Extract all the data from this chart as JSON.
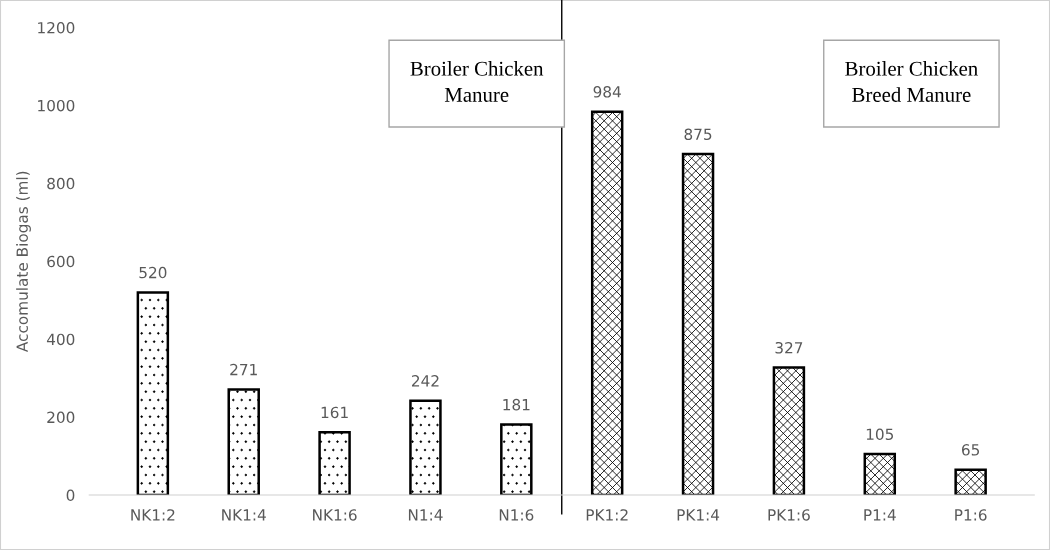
{
  "chart_data": {
    "type": "bar",
    "ylabel": "Accomulate Biogas (ml)",
    "categories": [
      "NK1:2",
      "NK1:4",
      "NK1:6",
      "N1:4",
      "N1:6",
      "PK1:2",
      "PK1:4",
      "PK1:6",
      "P1:4",
      "P1:6"
    ],
    "series": [
      {
        "color": "#000000",
        "values": [
          520,
          271,
          161,
          242,
          181,
          null,
          null,
          null,
          null,
          null
        ]
      },
      {
        "color": "#000000",
        "values": [
          null,
          null,
          null,
          null,
          null,
          984,
          875,
          327,
          105,
          65
        ]
      }
    ],
    "ylim": [
      0,
      1200
    ],
    "yticks": [
      0,
      200,
      400,
      600,
      800,
      1000,
      1200
    ],
    "annotations": [
      "Broiler Chicken\nManure",
      "Broiler Chicken\nBreed Manure"
    ],
    "data_labels": true,
    "grid": false
  }
}
